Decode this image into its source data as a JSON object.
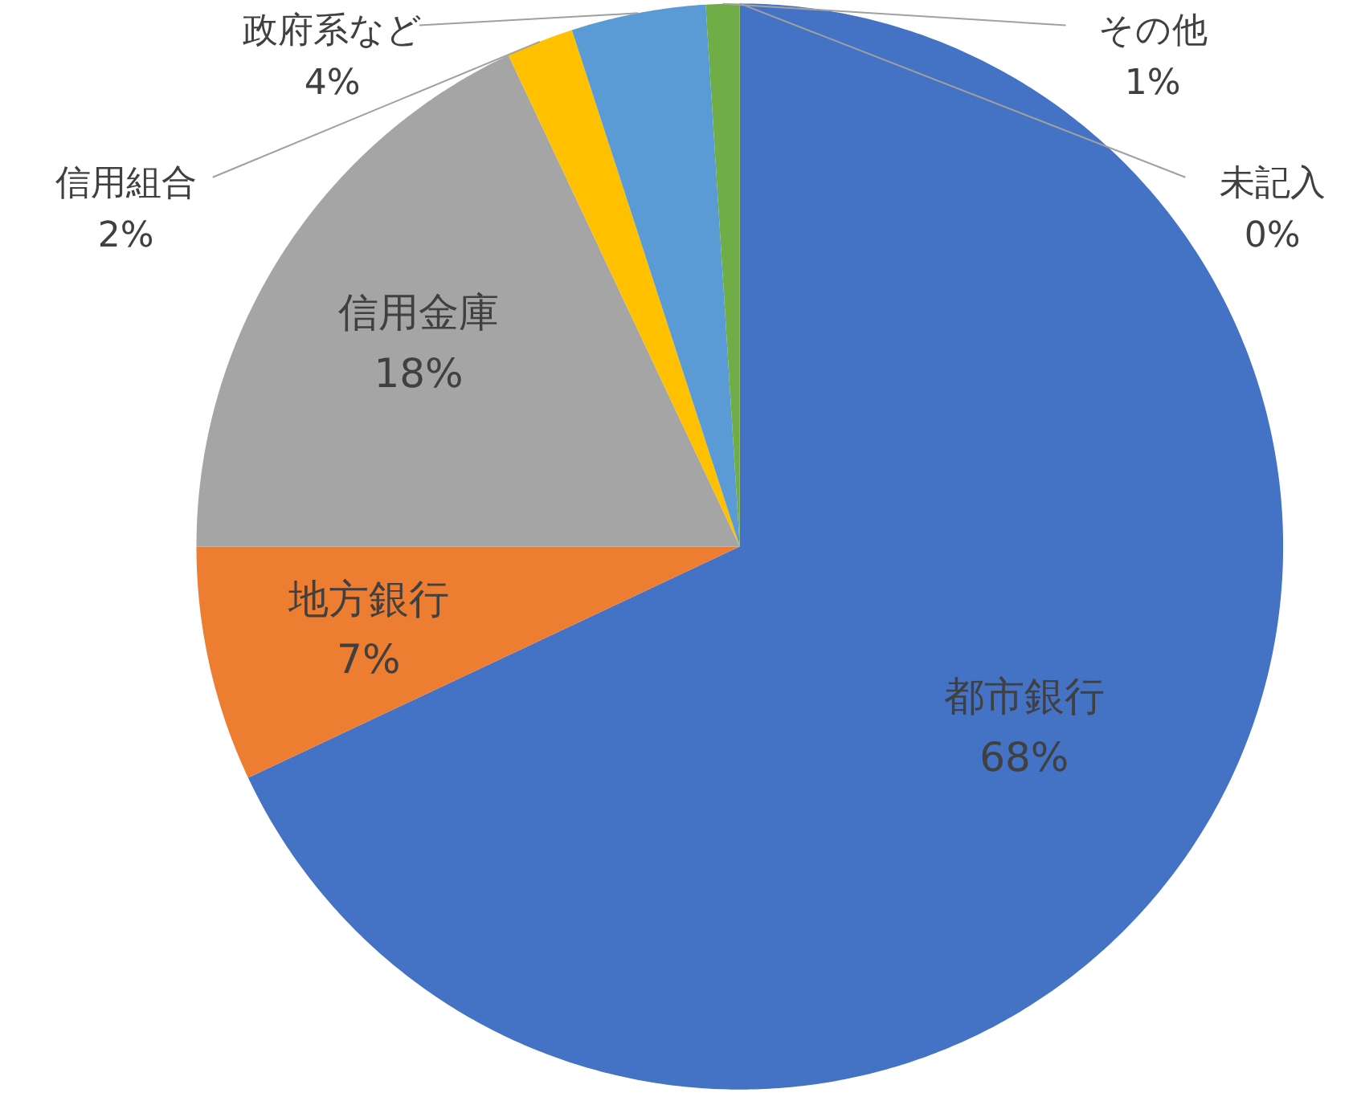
{
  "chart_data": {
    "type": "pie",
    "categories": [
      "都市銀行",
      "地方銀行",
      "信用金庫",
      "信用組合",
      "政府系など",
      "その他",
      "未記入"
    ],
    "values": [
      68,
      7,
      18,
      2,
      4,
      1,
      0
    ],
    "colors": [
      "#4472c4",
      "#ed7d31",
      "#a5a5a5",
      "#ffc000",
      "#5b9bd5",
      "#70ad47",
      "#264478"
    ],
    "value_labels": [
      "68%",
      "7%",
      "18%",
      "2%",
      "4%",
      "1%",
      "0%"
    ]
  }
}
